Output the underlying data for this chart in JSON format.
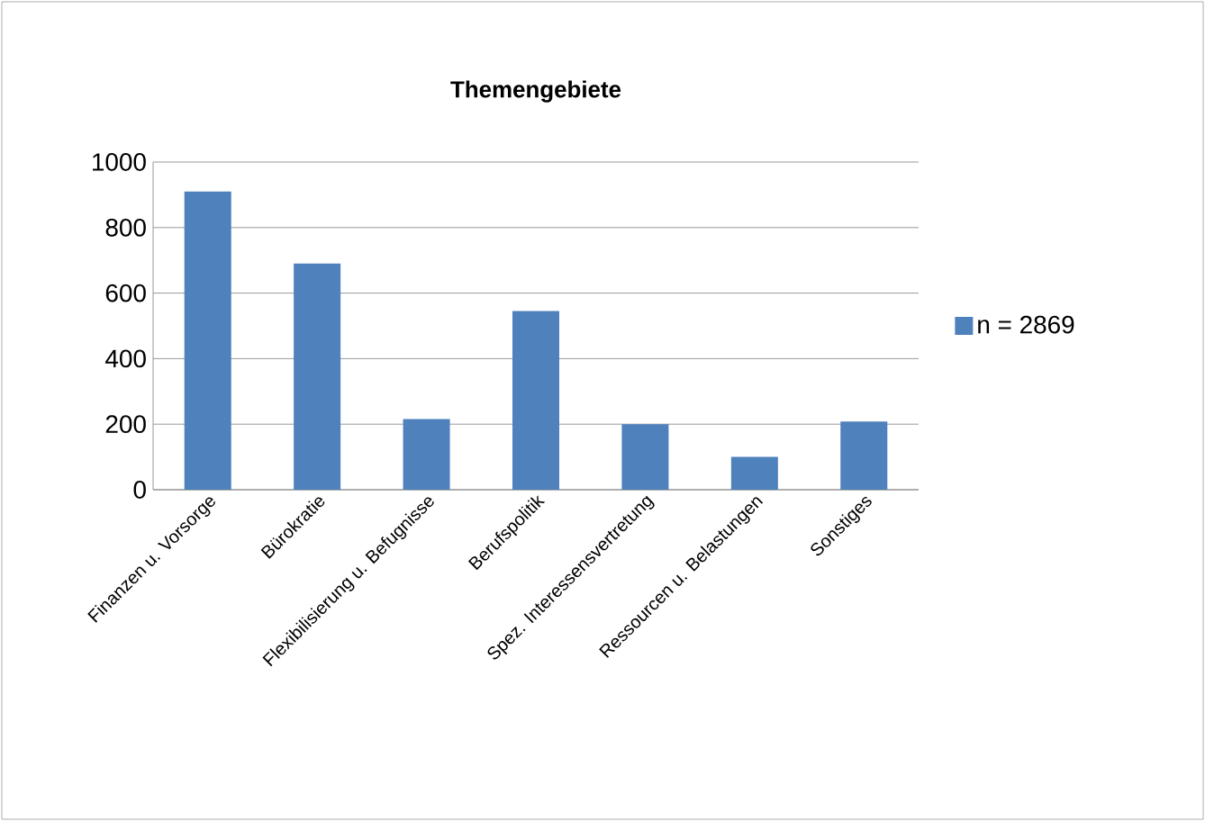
{
  "chart_data": {
    "type": "bar",
    "title": "Themengebiete",
    "categories": [
      "Finanzen u. Vorsorge",
      "Bürokratie",
      "Flexibilisierung u. Befugnisse",
      "Berufspolitik",
      "Spez. Interessensvertretung",
      "Ressourcen u. Belastungen",
      "Sonstiges"
    ],
    "series": [
      {
        "name": "n = 2869",
        "color": "#4f81bd",
        "values": [
          910,
          690,
          216,
          545,
          200,
          100,
          208
        ]
      }
    ],
    "ylim": [
      0,
      1000
    ],
    "yticks": [
      0,
      200,
      400,
      600,
      800,
      1000
    ],
    "grid": "y",
    "legend": "right"
  }
}
